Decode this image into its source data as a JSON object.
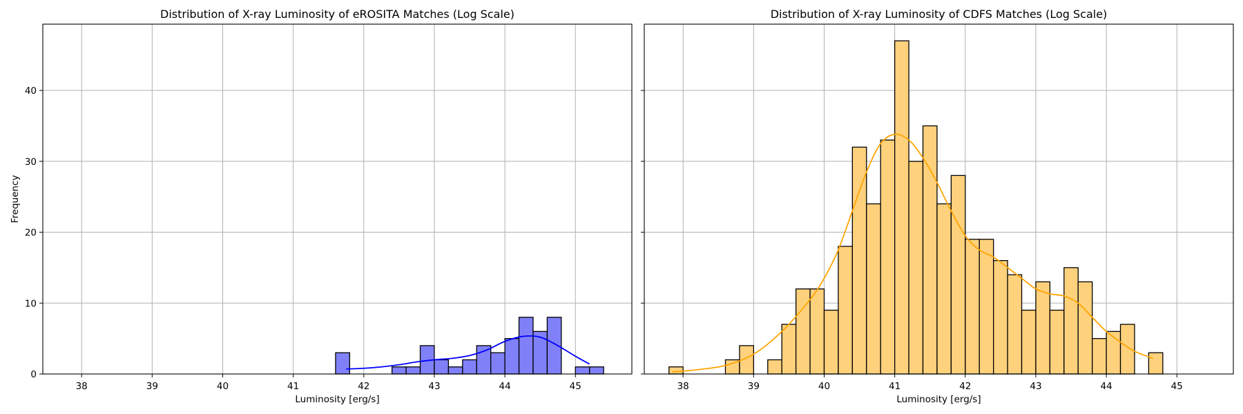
{
  "chart_data": [
    {
      "type": "bar",
      "title": "Distribution of X-ray Luminosity of eROSITA Matches (Log Scale)",
      "xlabel": "Luminosity [erg/s]",
      "ylabel": "Frequency",
      "xlim": [
        37.45,
        45.8
      ],
      "ylim": [
        0,
        49.35
      ],
      "xticks": [
        "38",
        "39",
        "40",
        "41",
        "42",
        "43",
        "44",
        "45"
      ],
      "yticks": [
        "0",
        "10",
        "20",
        "30",
        "40"
      ],
      "grid": true,
      "bar_color": "#8080f8",
      "line_color": "#0000ff",
      "bin_width": 0.2,
      "bins": [
        {
          "x0": 41.6,
          "value": 3
        },
        {
          "x0": 41.8,
          "value": 0
        },
        {
          "x0": 42.0,
          "value": 0
        },
        {
          "x0": 42.2,
          "value": 0
        },
        {
          "x0": 42.4,
          "value": 1
        },
        {
          "x0": 42.6,
          "value": 1
        },
        {
          "x0": 42.8,
          "value": 4
        },
        {
          "x0": 43.0,
          "value": 2
        },
        {
          "x0": 43.2,
          "value": 1
        },
        {
          "x0": 43.4,
          "value": 2
        },
        {
          "x0": 43.6,
          "value": 4
        },
        {
          "x0": 43.8,
          "value": 3
        },
        {
          "x0": 44.0,
          "value": 5
        },
        {
          "x0": 44.2,
          "value": 8
        },
        {
          "x0": 44.4,
          "value": 6
        },
        {
          "x0": 44.6,
          "value": 8
        },
        {
          "x0": 44.8,
          "value": 0
        },
        {
          "x0": 45.0,
          "value": 1
        },
        {
          "x0": 45.2,
          "value": 1
        }
      ],
      "kde": {
        "x": [
          41.75,
          42.0,
          42.25,
          42.5,
          42.75,
          43.0,
          43.25,
          43.5,
          43.75,
          44.0,
          44.25,
          44.5,
          44.75,
          45.0,
          45.2
        ],
        "y": [
          0.7,
          0.8,
          1.0,
          1.3,
          1.7,
          2.0,
          2.2,
          2.6,
          3.4,
          4.6,
          5.3,
          5.2,
          4.0,
          2.5,
          1.4
        ]
      }
    },
    {
      "type": "bar",
      "title": "Distribution of X-ray Luminosity of CDFS Matches (Log Scale)",
      "xlabel": "Luminosity [erg/s]",
      "ylabel": "",
      "xlim": [
        37.45,
        45.8
      ],
      "ylim": [
        0,
        49.35
      ],
      "xticks": [
        "38",
        "39",
        "40",
        "41",
        "42",
        "43",
        "44",
        "45"
      ],
      "yticks": [],
      "grid": true,
      "bar_color": "#fed17d",
      "line_color": "#ffa500",
      "bin_width": 0.2,
      "bins": [
        {
          "x0": 37.8,
          "value": 1
        },
        {
          "x0": 38.0,
          "value": 0
        },
        {
          "x0": 38.2,
          "value": 0
        },
        {
          "x0": 38.4,
          "value": 0
        },
        {
          "x0": 38.6,
          "value": 2
        },
        {
          "x0": 38.8,
          "value": 4
        },
        {
          "x0": 39.0,
          "value": 0
        },
        {
          "x0": 39.2,
          "value": 2
        },
        {
          "x0": 39.4,
          "value": 7
        },
        {
          "x0": 39.6,
          "value": 12
        },
        {
          "x0": 39.8,
          "value": 12
        },
        {
          "x0": 40.0,
          "value": 9
        },
        {
          "x0": 40.2,
          "value": 18
        },
        {
          "x0": 40.4,
          "value": 32
        },
        {
          "x0": 40.6,
          "value": 24
        },
        {
          "x0": 40.8,
          "value": 33
        },
        {
          "x0": 41.0,
          "value": 47
        },
        {
          "x0": 41.2,
          "value": 30
        },
        {
          "x0": 41.4,
          "value": 35
        },
        {
          "x0": 41.6,
          "value": 24
        },
        {
          "x0": 41.8,
          "value": 28
        },
        {
          "x0": 42.0,
          "value": 19
        },
        {
          "x0": 42.2,
          "value": 19
        },
        {
          "x0": 42.4,
          "value": 16
        },
        {
          "x0": 42.6,
          "value": 14
        },
        {
          "x0": 42.8,
          "value": 9
        },
        {
          "x0": 43.0,
          "value": 13
        },
        {
          "x0": 43.2,
          "value": 9
        },
        {
          "x0": 43.4,
          "value": 15
        },
        {
          "x0": 43.6,
          "value": 13
        },
        {
          "x0": 43.8,
          "value": 5
        },
        {
          "x0": 44.0,
          "value": 6
        },
        {
          "x0": 44.2,
          "value": 7
        },
        {
          "x0": 44.4,
          "value": 0
        },
        {
          "x0": 44.6,
          "value": 3
        }
      ],
      "kde": {
        "x": [
          37.85,
          38.2,
          38.6,
          39.0,
          39.4,
          39.8,
          40.0,
          40.2,
          40.4,
          40.6,
          40.8,
          41.0,
          41.2,
          41.4,
          41.6,
          41.8,
          42.0,
          42.2,
          42.4,
          42.6,
          42.8,
          43.0,
          43.2,
          43.4,
          43.6,
          43.8,
          44.0,
          44.2,
          44.4,
          44.66
        ],
        "y": [
          0.3,
          0.6,
          1.2,
          2.8,
          6.0,
          10.5,
          13.5,
          17.5,
          23.0,
          28.5,
          32.5,
          33.8,
          33.0,
          30.5,
          27.0,
          23.0,
          19.5,
          17.5,
          16.5,
          15.0,
          13.5,
          12.0,
          11.3,
          11.0,
          10.0,
          8.0,
          6.0,
          4.5,
          3.2,
          2.2
        ]
      }
    }
  ]
}
